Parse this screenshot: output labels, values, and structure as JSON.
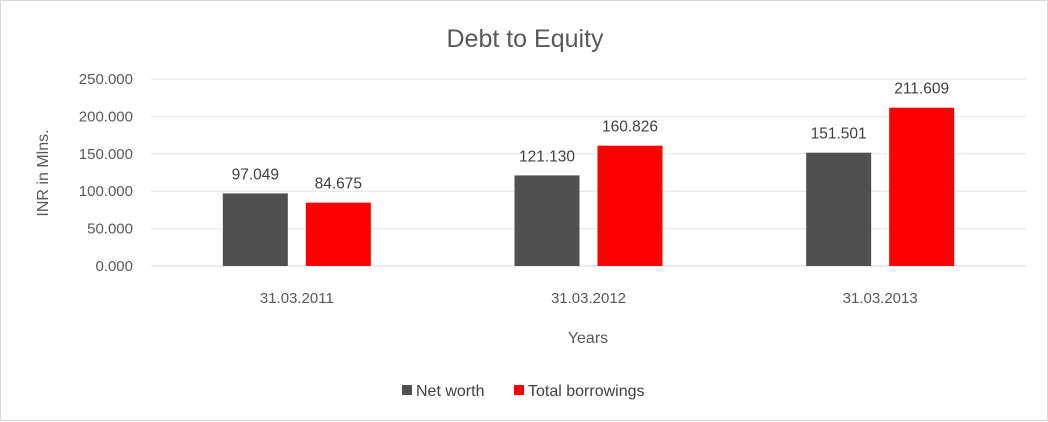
{
  "chart_data": {
    "type": "bar",
    "title": "Debt to Equity",
    "xlabel": "Years",
    "ylabel": "INR in Mlns.",
    "categories": [
      "31.03.2011",
      "31.03.2012",
      "31.03.2013"
    ],
    "series": [
      {
        "name": "Net worth",
        "color": "#505050",
        "values": [
          97.049,
          121.13,
          151.501
        ],
        "labels": [
          "97.049",
          "121.130",
          "151.501"
        ]
      },
      {
        "name": "Total borrowings",
        "color": "#ff0000",
        "values": [
          84.675,
          160.826,
          211.609
        ],
        "labels": [
          "84.675",
          "160.826",
          "211.609"
        ]
      }
    ],
    "y_ticks": [
      "0.000",
      "50.000",
      "100.000",
      "150.000",
      "200.000",
      "250.000"
    ],
    "ylim": [
      0,
      250
    ],
    "grid": true,
    "legend_position": "bottom"
  }
}
